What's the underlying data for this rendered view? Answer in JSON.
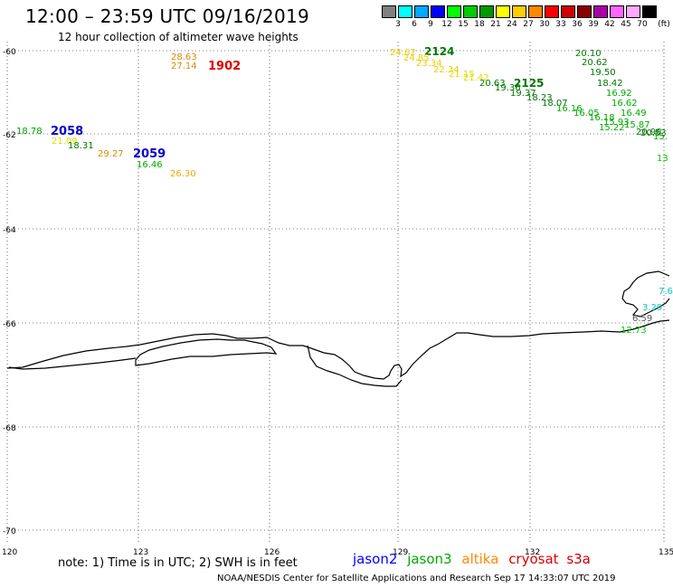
{
  "header": {
    "title": "12:00 – 23:59 UTC 09/16/2019",
    "subtitle": "12 hour collection of altimeter wave heights"
  },
  "colorbar": {
    "colors": [
      "#808080",
      "#00ffff",
      "#00aaff",
      "#0000ff",
      "#00ff00",
      "#00cc00",
      "#009900",
      "#ffff00",
      "#ffcc00",
      "#ff8800",
      "#ff0000",
      "#cc0000",
      "#880000",
      "#aa00aa",
      "#ff66ff",
      "#ffaaff",
      "#000000"
    ],
    "labels": [
      "3",
      "6",
      "9",
      "12",
      "15",
      "18",
      "21",
      "24",
      "27",
      "30",
      "33",
      "36",
      "39",
      "42",
      "45",
      "70"
    ],
    "unit": "(ft)"
  },
  "axes": {
    "lat_ticks": [
      "-60",
      "-62",
      "-64",
      "-66",
      "-68",
      "-70"
    ],
    "lon_ticks": [
      "120",
      "123",
      "126",
      "129",
      "132",
      "135"
    ]
  },
  "pass_labels": [
    {
      "text": "1902",
      "color": "#dd0000"
    },
    {
      "text": "2058",
      "color": "#0000cc"
    },
    {
      "text": "2059",
      "color": "#0000cc"
    },
    {
      "text": "2124",
      "color": "#007700"
    },
    {
      "text": "2125",
      "color": "#007700"
    }
  ],
  "wave_values": [
    {
      "text": "28.63",
      "color": "#dd8800"
    },
    {
      "text": "27.14",
      "color": "#dd8800"
    },
    {
      "text": "18.78",
      "color": "#009900"
    },
    {
      "text": "21.09",
      "color": "#dddd00"
    },
    {
      "text": "18.31",
      "color": "#007700"
    },
    {
      "text": "29.27",
      "color": "#dd8800"
    },
    {
      "text": "16.46",
      "color": "#00aa00"
    },
    {
      "text": "26.30",
      "color": "#eeaa00"
    },
    {
      "text": "24.62",
      "color": "#eecc00"
    },
    {
      "text": "24.85",
      "color": "#eecc00"
    },
    {
      "text": "23.34",
      "color": "#eecc00"
    },
    {
      "text": "22.34",
      "color": "#eecc00"
    },
    {
      "text": "21.15",
      "color": "#dddd00"
    },
    {
      "text": "21.42",
      "color": "#dddd00"
    },
    {
      "text": "20.63",
      "color": "#007700"
    },
    {
      "text": "19.36",
      "color": "#007700"
    },
    {
      "text": "19.37",
      "color": "#007700"
    },
    {
      "text": "18.23",
      "color": "#007700"
    },
    {
      "text": "18.07",
      "color": "#007700"
    },
    {
      "text": "16.16",
      "color": "#00aa00"
    },
    {
      "text": "16.05",
      "color": "#00aa00"
    },
    {
      "text": "16.18",
      "color": "#00aa00"
    },
    {
      "text": "15.93",
      "color": "#00aa00"
    },
    {
      "text": "15.87",
      "color": "#00aa00"
    },
    {
      "text": "15.22",
      "color": "#00aa00"
    },
    {
      "text": "20.10",
      "color": "#007700"
    },
    {
      "text": "20.62",
      "color": "#007700"
    },
    {
      "text": "19.50",
      "color": "#007700"
    },
    {
      "text": "18.42",
      "color": "#007700"
    },
    {
      "text": "16.92",
      "color": "#00aa00"
    },
    {
      "text": "16.62",
      "color": "#00aa00"
    },
    {
      "text": "16.49",
      "color": "#00aa00"
    },
    {
      "text": "20.98",
      "color": "#007700"
    },
    {
      "text": "20.53",
      "color": "#007700"
    },
    {
      "text": "15.",
      "color": "#00aa00"
    },
    {
      "text": "13",
      "color": "#00cc00"
    },
    {
      "text": "7.6",
      "color": "#00cccc"
    },
    {
      "text": "3.29",
      "color": "#00cccc"
    },
    {
      "text": "6.59",
      "color": "#555555"
    },
    {
      "text": "12.73",
      "color": "#00cc00"
    }
  ],
  "footer": {
    "note": "note: 1) Time is in UTC; 2) SWH is in feet",
    "missions": [
      {
        "name": "jason2",
        "color": "#0000ff"
      },
      {
        "name": "jason3",
        "color": "#00aa00"
      },
      {
        "name": "altika",
        "color": "#ff8800"
      },
      {
        "name": "cryosat",
        "color": "#dd0000"
      },
      {
        "name": "s3a",
        "color": "#cc0000"
      }
    ],
    "credit": "NOAA/NESDIS Center for Satellite Applications and Research   Sep 17 14:33:07 UTC 2019"
  }
}
